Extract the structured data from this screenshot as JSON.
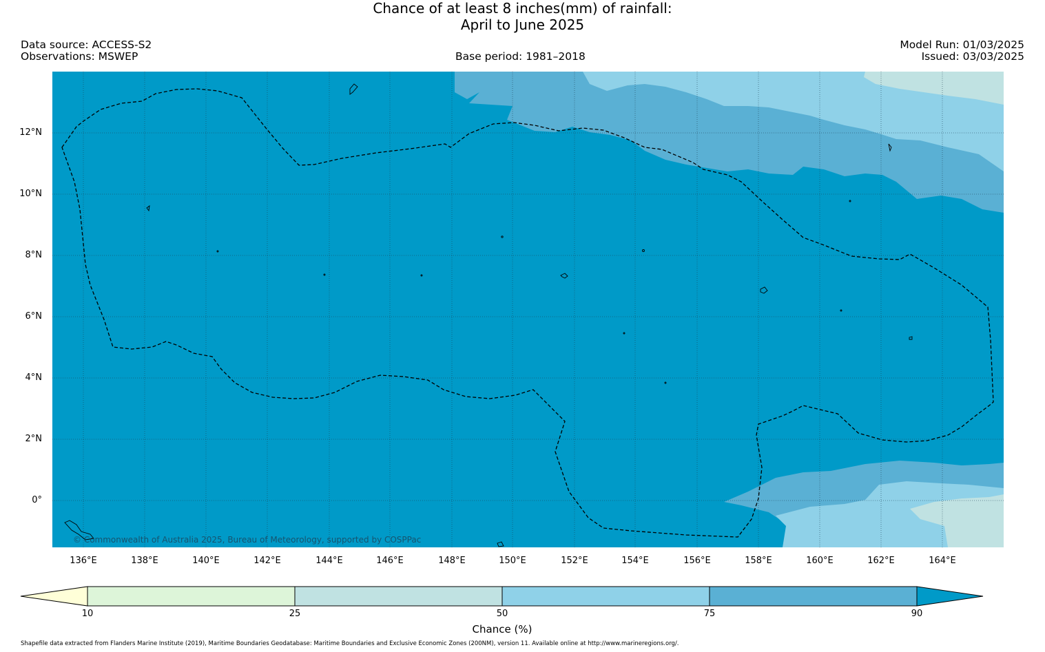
{
  "title": {
    "line1": "Chance of at least 8 inches(mm) of rainfall:",
    "line2": "April to June 2025"
  },
  "header": {
    "data_source": "Data source: ACCESS-S2",
    "observations": "Observations: MSWEP",
    "base_period": "Base period: 1981–2018",
    "model_run": "Model Run: 01/03/2025",
    "issued": "Issued: 03/03/2025"
  },
  "map": {
    "lat_labels": [
      "12°N",
      "10°N",
      "8°N",
      "6°N",
      "4°N",
      "2°N",
      "0°"
    ],
    "lon_labels": [
      "136°E",
      "138°E",
      "140°E",
      "142°E",
      "144°E",
      "146°E",
      "148°E",
      "150°E",
      "152°E",
      "154°E",
      "156°E",
      "158°E",
      "160°E",
      "162°E",
      "164°E"
    ],
    "copyright": "© Commonwealth of Australia 2025, Bureau of Meteorology, supported by COSPPac",
    "colors": {
      "above_90": "#009ac8",
      "band_75_90": "#5ab0d4",
      "band_50_75": "#8fd1e8",
      "band_25_50": "#c0e2e2"
    }
  },
  "colorbar": {
    "ticks": [
      "10",
      "25",
      "50",
      "75",
      "90"
    ],
    "label": "Chance (%)",
    "colors": [
      "#ffffd8",
      "#ddf5d9",
      "#c0e2e2",
      "#8fd1e8",
      "#5ab0d4",
      "#009ac8"
    ]
  },
  "footer": "Shapefile data extracted from Flanders Marine Institute (2019), Maritime Boundaries Geodatabase: Maritime Boundaries and Exclusive Economic Zones (200NM), version 11. Available online at http://www.marineregions.org/."
}
